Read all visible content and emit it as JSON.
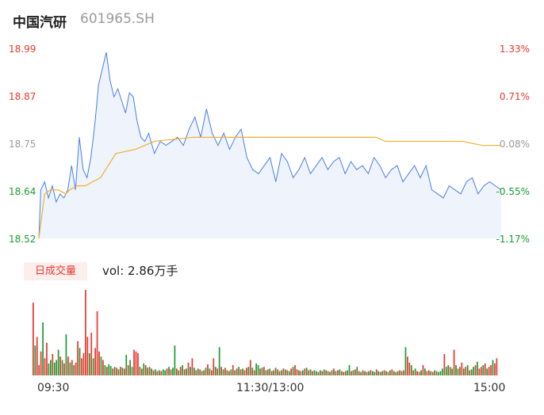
{
  "header": {
    "name": "中国汽研",
    "code": "601965.SH"
  },
  "volume_panel": {
    "badge": "日成交量",
    "label": "vol: 2.86万手"
  },
  "colors": {
    "up": "#e8372d",
    "down": "#1a9b31",
    "neutral": "#999999",
    "price_line": "#4a7ee8",
    "avg_line": "#f0b030",
    "area_fill": "#eef3fc"
  },
  "chart_data": [
    {
      "type": "line",
      "title": "",
      "y_ticks_left": [
        "18.99",
        "18.87",
        "18.75",
        "18.64",
        "18.52"
      ],
      "y_ticks_right": [
        "1.33%",
        "0.71%",
        "0.08%",
        "-0.55%",
        "-1.17%"
      ],
      "x_ticks": [
        "09:30",
        "11:30/13:00",
        "15:00"
      ],
      "ylim": [
        18.52,
        18.99
      ],
      "xlim": [
        0,
        240
      ],
      "series": [
        {
          "role": "price",
          "x": [
            0,
            1,
            3,
            5,
            7,
            9,
            11,
            13,
            15,
            17,
            19,
            21,
            23,
            25,
            27,
            29,
            31,
            33,
            35,
            37,
            39,
            41,
            43,
            45,
            47,
            49,
            51,
            53,
            55,
            57,
            60,
            63,
            66,
            69,
            72,
            75,
            78,
            81,
            84,
            87,
            90,
            93,
            96,
            99,
            102,
            105,
            108,
            111,
            114,
            117,
            120,
            123,
            126,
            129,
            132,
            135,
            138,
            141,
            144,
            147,
            150,
            153,
            156,
            159,
            162,
            165,
            168,
            171,
            174,
            177,
            180,
            183,
            186,
            189,
            192,
            195,
            198,
            201,
            204,
            207,
            210,
            213,
            216,
            219,
            222,
            225,
            228,
            231,
            234,
            237,
            240
          ],
          "y": [
            18.52,
            18.64,
            18.66,
            18.62,
            18.65,
            18.61,
            18.63,
            18.62,
            18.64,
            18.7,
            18.64,
            18.77,
            18.69,
            18.67,
            18.72,
            18.8,
            18.9,
            18.94,
            18.98,
            18.91,
            18.87,
            18.89,
            18.86,
            18.83,
            18.88,
            18.87,
            18.81,
            18.77,
            18.76,
            18.78,
            18.73,
            18.76,
            18.75,
            18.76,
            18.77,
            18.75,
            18.79,
            18.82,
            18.77,
            18.84,
            18.78,
            18.75,
            18.78,
            18.74,
            18.77,
            18.79,
            18.72,
            18.69,
            18.68,
            18.7,
            18.72,
            18.66,
            18.73,
            18.71,
            18.67,
            18.69,
            18.72,
            18.68,
            18.7,
            18.72,
            18.69,
            18.71,
            18.72,
            18.68,
            18.71,
            18.69,
            18.7,
            18.68,
            18.72,
            18.7,
            18.67,
            18.69,
            18.7,
            18.66,
            18.68,
            18.7,
            18.67,
            18.7,
            18.64,
            18.63,
            18.62,
            18.65,
            18.64,
            18.63,
            18.66,
            18.67,
            18.63,
            18.65,
            18.66,
            18.65,
            18.64
          ]
        },
        {
          "role": "average",
          "x": [
            0,
            3,
            6,
            10,
            14,
            16,
            20,
            24,
            28,
            32,
            36,
            40,
            50,
            60,
            80,
            100,
            120,
            140,
            160,
            170,
            175,
            180,
            200,
            220,
            230,
            240
          ],
          "y": [
            18.52,
            18.63,
            18.64,
            18.64,
            18.63,
            18.64,
            18.65,
            18.65,
            18.66,
            18.67,
            18.7,
            18.73,
            18.74,
            18.76,
            18.77,
            18.77,
            18.77,
            18.77,
            18.77,
            18.77,
            18.77,
            18.76,
            18.76,
            18.76,
            18.75,
            18.75
          ]
        }
      ]
    },
    {
      "type": "bar",
      "title": "",
      "xlim": [
        0,
        240
      ],
      "ylim": [
        0,
        1
      ],
      "values": [
        0.85,
        0.35,
        0.45,
        0.12,
        0.28,
        0.62,
        0.2,
        0.38,
        0.14,
        0.18,
        0.25,
        0.15,
        0.18,
        0.3,
        0.22,
        0.18,
        0.14,
        0.48,
        0.22,
        0.15,
        0.18,
        0.12,
        0.15,
        0.4,
        0.32,
        0.2,
        0.26,
        1.0,
        0.45,
        0.26,
        0.5,
        0.2,
        0.32,
        0.75,
        0.28,
        0.22,
        0.18,
        0.12,
        0.1,
        0.13,
        0.11,
        0.08,
        0.1,
        0.09,
        0.07,
        0.1,
        0.09,
        0.08,
        0.24,
        0.12,
        0.18,
        0.1,
        0.3,
        0.28,
        0.26,
        0.1,
        0.08,
        0.14,
        0.12,
        0.09,
        0.1,
        0.08,
        0.06,
        0.07,
        0.05,
        0.06,
        0.05,
        0.07,
        0.06,
        0.08,
        0.1,
        0.07,
        0.09,
        0.35,
        0.08,
        0.06,
        0.1,
        0.12,
        0.07,
        0.08,
        0.15,
        0.1,
        0.2,
        0.09,
        0.06,
        0.08,
        0.07,
        0.05,
        0.06,
        0.09,
        0.13,
        0.08,
        0.06,
        0.2,
        0.1,
        0.08,
        0.33,
        0.1,
        0.07,
        0.09,
        0.06,
        0.05,
        0.07,
        0.12,
        0.06,
        0.08,
        0.1,
        0.07,
        0.08,
        0.06,
        0.09,
        0.1,
        0.18,
        0.09,
        0.06,
        0.14,
        0.12,
        0.08,
        0.09,
        0.1,
        0.06,
        0.07,
        0.08,
        0.05,
        0.06,
        0.09,
        0.07,
        0.05,
        0.06,
        0.08,
        0.07,
        0.06,
        0.05,
        0.08,
        0.1,
        0.12,
        0.07,
        0.06,
        0.05,
        0.06,
        0.08,
        0.09,
        0.06,
        0.07,
        0.05,
        0.06,
        0.05,
        0.04,
        0.06,
        0.05,
        0.07,
        0.06,
        0.05,
        0.04,
        0.06,
        0.08,
        0.05,
        0.06,
        0.07,
        0.05,
        0.04,
        0.05,
        0.06,
        0.12,
        0.05,
        0.06,
        0.07,
        0.1,
        0.05,
        0.04,
        0.06,
        0.05,
        0.04,
        0.05,
        0.06,
        0.05,
        0.04,
        0.07,
        0.05,
        0.04,
        0.05,
        0.06,
        0.05,
        0.04,
        0.06,
        0.07,
        0.05,
        0.04,
        0.05,
        0.06,
        0.05,
        0.06,
        0.33,
        0.22,
        0.15,
        0.12,
        0.06,
        0.08,
        0.05,
        0.04,
        0.06,
        0.12,
        0.08,
        0.05,
        0.06,
        0.05,
        0.04,
        0.06,
        0.05,
        0.04,
        0.05,
        0.08,
        0.25,
        0.1,
        0.12,
        0.1,
        0.08,
        0.3,
        0.12,
        0.08,
        0.1,
        0.15,
        0.08,
        0.1,
        0.12,
        0.06,
        0.07,
        0.1,
        0.12,
        0.16,
        0.08,
        0.1,
        0.12,
        0.14,
        0.08,
        0.1,
        0.12,
        0.18,
        0.14,
        0.2
      ],
      "colors": [
        "up",
        "down",
        "up",
        "up",
        "up",
        "down",
        "up",
        "up",
        "down",
        "down",
        "up",
        "down",
        "down",
        "down",
        "up",
        "down",
        "up",
        "down",
        "up",
        "down",
        "up",
        "down",
        "up",
        "up",
        "down",
        "up",
        "up",
        "up",
        "up",
        "down",
        "up",
        "down",
        "up",
        "up",
        "up",
        "down",
        "up",
        "down",
        "up",
        "down",
        "down",
        "up",
        "down",
        "up",
        "down",
        "up",
        "down",
        "up",
        "down",
        "up",
        "down",
        "down",
        "up",
        "up",
        "up",
        "down",
        "up",
        "down",
        "up",
        "down",
        "up",
        "down",
        "up",
        "down",
        "up",
        "down",
        "up",
        "down",
        "down",
        "up",
        "down",
        "up",
        "down",
        "down",
        "up",
        "down",
        "up",
        "down",
        "up",
        "down",
        "up",
        "down",
        "up",
        "down",
        "up",
        "down",
        "up",
        "down",
        "up",
        "down",
        "up",
        "down",
        "up",
        "up",
        "down",
        "up",
        "down",
        "up",
        "down",
        "up",
        "down",
        "up",
        "down",
        "up",
        "down",
        "up",
        "down",
        "up",
        "down",
        "up",
        "up",
        "down",
        "up",
        "down",
        "up",
        "down",
        "down",
        "up",
        "down",
        "up",
        "down",
        "up",
        "down",
        "up",
        "down",
        "up",
        "down",
        "up",
        "down",
        "up",
        "down",
        "up",
        "down",
        "up",
        "down",
        "up",
        "up",
        "down",
        "up",
        "down",
        "up",
        "down",
        "up",
        "down",
        "up",
        "down",
        "down",
        "up",
        "down",
        "up",
        "down",
        "up",
        "down",
        "up",
        "down",
        "up",
        "down",
        "up",
        "down",
        "up",
        "down",
        "up",
        "down",
        "down",
        "up",
        "down",
        "up",
        "down",
        "up",
        "down",
        "up",
        "down",
        "up",
        "down",
        "up",
        "down",
        "down",
        "up",
        "down",
        "up",
        "down",
        "up",
        "down",
        "up",
        "down",
        "up",
        "down",
        "up",
        "down",
        "up",
        "down",
        "up",
        "down",
        "up",
        "up",
        "down",
        "up",
        "down",
        "up",
        "up",
        "down",
        "up",
        "down",
        "up",
        "up",
        "down",
        "up",
        "down",
        "up",
        "down",
        "down",
        "down",
        "up",
        "down",
        "down",
        "up",
        "down",
        "up",
        "down",
        "down",
        "up",
        "up",
        "down",
        "up",
        "down",
        "up",
        "down",
        "down",
        "up",
        "down",
        "up",
        "up",
        "down",
        "up",
        "down",
        "up",
        "up",
        "down",
        "up",
        "up"
      ]
    }
  ]
}
